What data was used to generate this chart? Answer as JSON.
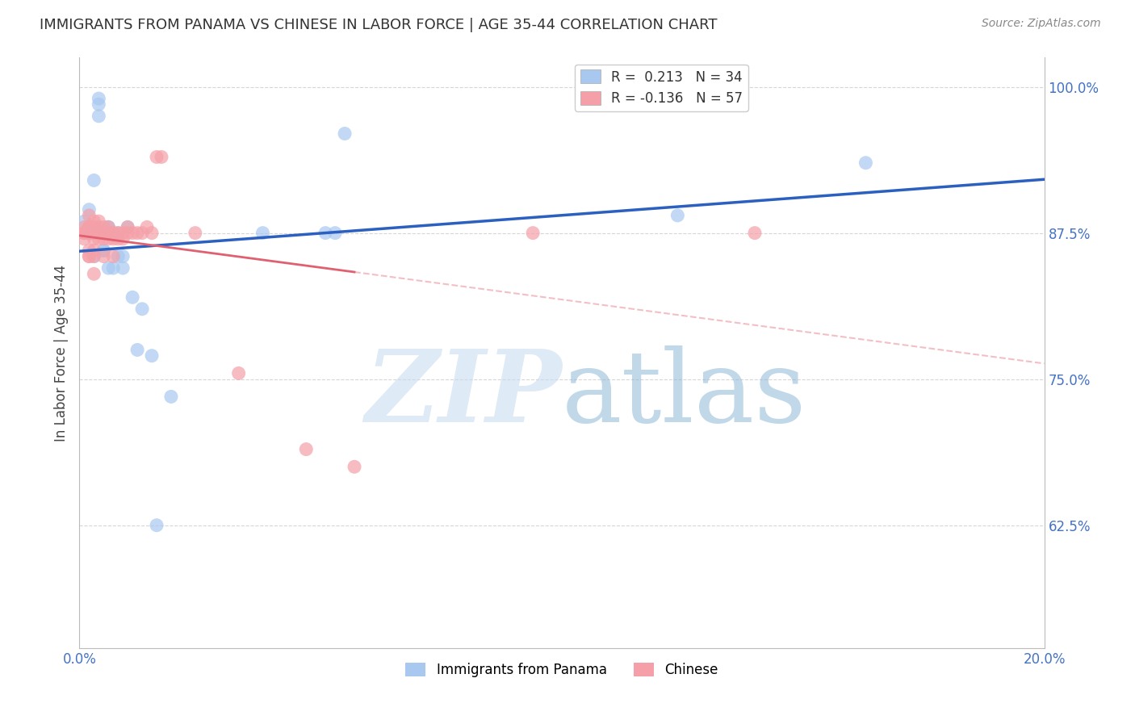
{
  "title": "IMMIGRANTS FROM PANAMA VS CHINESE IN LABOR FORCE | AGE 35-44 CORRELATION CHART",
  "source": "Source: ZipAtlas.com",
  "ylabel": "In Labor Force | Age 35-44",
  "xlim": [
    0.0,
    0.2
  ],
  "ylim": [
    0.52,
    1.025
  ],
  "xticks": [
    0.0,
    0.04,
    0.08,
    0.12,
    0.16,
    0.2
  ],
  "xticklabels": [
    "0.0%",
    "",
    "",
    "",
    "",
    "20.0%"
  ],
  "yticks": [
    0.625,
    0.75,
    0.875,
    1.0
  ],
  "yticklabels": [
    "62.5%",
    "75.0%",
    "87.5%",
    "100.0%"
  ],
  "panama_x": [
    0.001,
    0.002,
    0.002,
    0.003,
    0.003,
    0.004,
    0.004,
    0.005,
    0.005,
    0.006,
    0.006,
    0.007,
    0.007,
    0.008,
    0.008,
    0.009,
    0.009,
    0.01,
    0.011,
    0.012,
    0.013,
    0.015,
    0.016,
    0.019,
    0.038,
    0.051,
    0.053,
    0.055,
    0.124,
    0.163,
    0.003,
    0.004,
    0.005,
    0.006
  ],
  "panama_y": [
    0.885,
    0.895,
    0.875,
    0.875,
    0.855,
    0.975,
    0.985,
    0.875,
    0.86,
    0.88,
    0.845,
    0.845,
    0.875,
    0.875,
    0.855,
    0.845,
    0.855,
    0.88,
    0.82,
    0.775,
    0.81,
    0.77,
    0.625,
    0.735,
    0.875,
    0.875,
    0.875,
    0.96,
    0.89,
    0.935,
    0.92,
    0.99,
    0.86,
    0.88
  ],
  "chinese_x": [
    0.001,
    0.001,
    0.001,
    0.001,
    0.002,
    0.002,
    0.002,
    0.002,
    0.002,
    0.002,
    0.002,
    0.003,
    0.003,
    0.003,
    0.003,
    0.003,
    0.003,
    0.004,
    0.004,
    0.004,
    0.004,
    0.005,
    0.005,
    0.005,
    0.006,
    0.006,
    0.006,
    0.007,
    0.007,
    0.007,
    0.008,
    0.008,
    0.009,
    0.009,
    0.01,
    0.01,
    0.011,
    0.012,
    0.013,
    0.014,
    0.015,
    0.016,
    0.017,
    0.024,
    0.033,
    0.047,
    0.057,
    0.094,
    0.14,
    0.001,
    0.002,
    0.002,
    0.003,
    0.004,
    0.005,
    0.006,
    0.007
  ],
  "chinese_y": [
    0.87,
    0.875,
    0.875,
    0.88,
    0.855,
    0.86,
    0.875,
    0.875,
    0.88,
    0.88,
    0.89,
    0.84,
    0.855,
    0.87,
    0.875,
    0.88,
    0.885,
    0.87,
    0.875,
    0.88,
    0.885,
    0.855,
    0.87,
    0.875,
    0.87,
    0.875,
    0.88,
    0.855,
    0.87,
    0.875,
    0.87,
    0.875,
    0.87,
    0.875,
    0.875,
    0.88,
    0.875,
    0.875,
    0.875,
    0.88,
    0.875,
    0.94,
    0.94,
    0.875,
    0.755,
    0.69,
    0.675,
    0.875,
    0.875,
    0.875,
    0.855,
    0.875,
    0.86,
    0.875,
    0.88,
    0.875,
    0.875
  ],
  "panama_color": "#A8C8F0",
  "chinese_color": "#F5A0A8",
  "panama_R": 0.213,
  "panama_N": 34,
  "chinese_R": -0.136,
  "chinese_N": 57,
  "blue_line_color": "#2B5FC0",
  "pink_line_color": "#E06070",
  "grid_color": "#CCCCCC",
  "title_color": "#333333",
  "axis_tick_color": "#4472C4"
}
